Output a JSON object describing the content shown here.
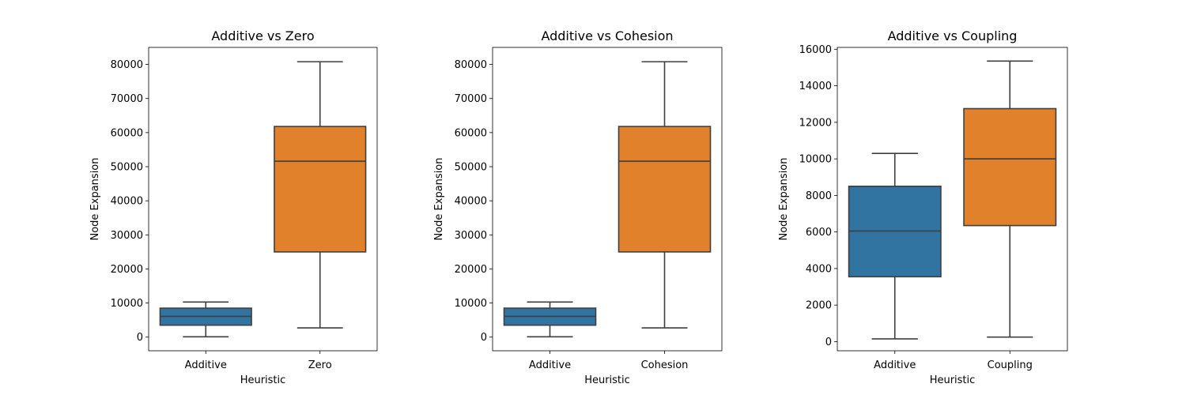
{
  "chart_data": [
    {
      "type": "box",
      "title": "Additive vs Zero",
      "xlabel": "Heuristic",
      "ylabel": "Node Expansion",
      "ylim": [
        -4000,
        85000
      ],
      "yticks": [
        0,
        10000,
        20000,
        30000,
        40000,
        50000,
        60000,
        70000,
        80000
      ],
      "categories": [
        "Additive",
        "Zero"
      ],
      "boxes": [
        {
          "category": "Additive",
          "color": "#3274a1",
          "whisker_low": 100,
          "q1": 3500,
          "median": 6100,
          "q3": 8500,
          "whisker_high": 10300
        },
        {
          "category": "Zero",
          "color": "#e1812c",
          "whisker_low": 2700,
          "q1": 25000,
          "median": 51600,
          "q3": 61800,
          "whisker_high": 80800
        }
      ]
    },
    {
      "type": "box",
      "title": "Additive vs Cohesion",
      "xlabel": "Heuristic",
      "ylabel": "Node Expansion",
      "ylim": [
        -4000,
        85000
      ],
      "yticks": [
        0,
        10000,
        20000,
        30000,
        40000,
        50000,
        60000,
        70000,
        80000
      ],
      "categories": [
        "Additive",
        "Cohesion"
      ],
      "boxes": [
        {
          "category": "Additive",
          "color": "#3274a1",
          "whisker_low": 100,
          "q1": 3500,
          "median": 6100,
          "q3": 8500,
          "whisker_high": 10300
        },
        {
          "category": "Cohesion",
          "color": "#e1812c",
          "whisker_low": 2700,
          "q1": 25000,
          "median": 51600,
          "q3": 61800,
          "whisker_high": 80800
        }
      ]
    },
    {
      "type": "box",
      "title": "Additive vs Coupling",
      "xlabel": "Heuristic",
      "ylabel": "Node Expansion",
      "ylim": [
        -500,
        16100
      ],
      "yticks": [
        0,
        2000,
        4000,
        6000,
        8000,
        10000,
        12000,
        14000,
        16000
      ],
      "categories": [
        "Additive",
        "Coupling"
      ],
      "boxes": [
        {
          "category": "Additive",
          "color": "#3274a1",
          "whisker_low": 150,
          "q1": 3550,
          "median": 6050,
          "q3": 8500,
          "whisker_high": 10300
        },
        {
          "category": "Coupling",
          "color": "#e1812c",
          "whisker_low": 250,
          "q1": 6350,
          "median": 10000,
          "q3": 12750,
          "whisker_high": 15350
        }
      ]
    }
  ]
}
